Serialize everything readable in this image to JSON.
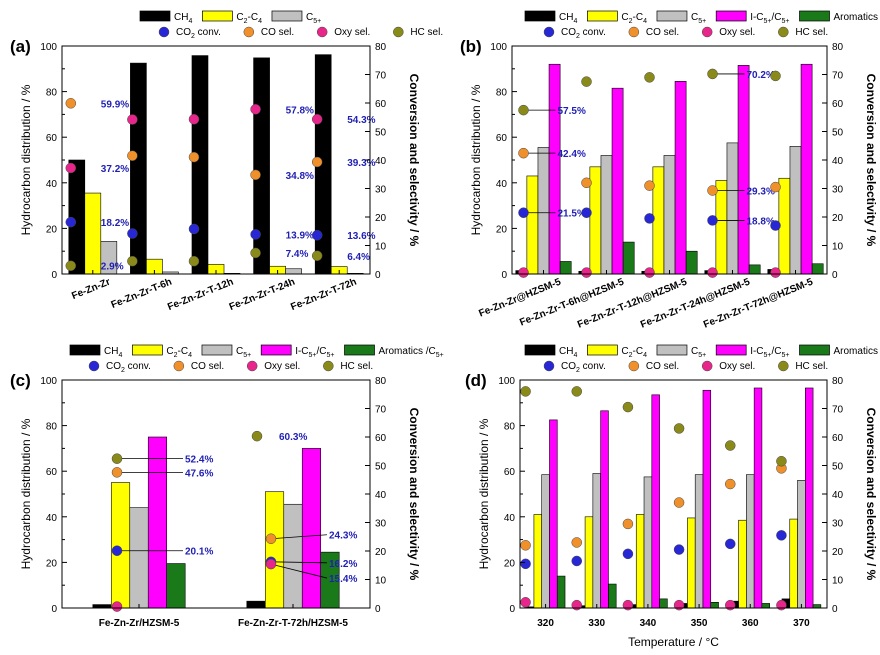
{
  "figure": {
    "title": "Hydrocarbon distribution and conversion/selectivity of Fe-Zn-Zr catalysts"
  },
  "colors": {
    "CH4": "#000000",
    "C2C4": "#ffff00",
    "C5p": "#c0c0c0",
    "iC5": "#ff00ff",
    "arom": "#1a7a1a",
    "co2": "#2727d6",
    "co": "#f0902a",
    "oxy": "#e8258a",
    "hc": "#8a8a1a",
    "label": "#1f1fb4"
  },
  "chart_data": [
    {
      "id": "a",
      "panel_label": "(a)",
      "type": "bar",
      "categories": [
        "Fe-Zn-Zr",
        "Fe-Zn-Zr-T-6h",
        "Fe-Zn-Zr-T-12h",
        "Fe-Zn-Zr-T-24h",
        "Fe-Zn-Zr-T-72h"
      ],
      "rotate_ticks": true,
      "xlabel": "",
      "ylabel_left": "Hydrocarbon distribution / %",
      "ylabel_right": "Conversion and selectivity / %",
      "ylim_left": [
        0,
        100
      ],
      "yticks_left": [
        0,
        20,
        40,
        60,
        80,
        100
      ],
      "ylim_right": [
        0,
        80
      ],
      "yticks_right": [
        0,
        10,
        20,
        30,
        40,
        50,
        60,
        70,
        80
      ],
      "legend": {
        "bars": [
          {
            "key": "CH4",
            "label": "CH",
            "sub": "4"
          },
          {
            "key": "C2C4",
            "label": "C",
            "sub": "2",
            "mid": "-C",
            "sub2": "4"
          },
          {
            "key": "C5p",
            "label": "C",
            "sub": "5+"
          }
        ],
        "points": [
          {
            "key": "co2",
            "label": "CO",
            "sub": "2",
            "rest": " conv."
          },
          {
            "key": "co",
            "label": "CO sel."
          },
          {
            "key": "oxy",
            "label": "Oxy sel."
          },
          {
            "key": "hc",
            "label": "HC sel."
          }
        ]
      },
      "series": [
        {
          "name": "CH4",
          "key": "CH4",
          "values": [
            50.0,
            92.5,
            95.8,
            94.8,
            96.2
          ]
        },
        {
          "name": "C2-C4",
          "key": "C2C4",
          "values": [
            35.5,
            6.5,
            4.2,
            3.4,
            3.2
          ]
        },
        {
          "name": "C5+",
          "key": "C5p",
          "values": [
            14.3,
            0.9,
            0.3,
            2.3,
            0.3
          ]
        }
      ],
      "points": [
        {
          "name": "CO2 conv.",
          "key": "co2",
          "values": [
            18.2,
            14.2,
            15.8,
            13.9,
            13.6
          ]
        },
        {
          "name": "CO sel.",
          "key": "co",
          "values": [
            59.9,
            41.5,
            41.0,
            34.8,
            39.3
          ]
        },
        {
          "name": "Oxy sel.",
          "key": "oxy",
          "values": [
            37.2,
            54.2,
            54.3,
            57.8,
            54.3
          ]
        },
        {
          "name": "HC sel.",
          "key": "hc",
          "values": [
            2.9,
            4.5,
            4.5,
            7.4,
            6.4
          ]
        }
      ],
      "annotations": [
        {
          "text": "59.9%",
          "cat": 0,
          "value": 59.9
        },
        {
          "text": "37.2%",
          "cat": 0,
          "value": 37.2
        },
        {
          "text": "18.2%",
          "cat": 0,
          "value": 18.2
        },
        {
          "text": "2.9%",
          "cat": 0,
          "value": 2.9
        },
        {
          "text": "57.8%",
          "cat": 3,
          "value": 57.8
        },
        {
          "text": "34.8%",
          "cat": 3,
          "value": 34.8
        },
        {
          "text": "13.9%",
          "cat": 3,
          "value": 13.9
        },
        {
          "text": "7.4%",
          "cat": 3,
          "value": 7.4
        },
        {
          "text": "54.3%",
          "cat": 4,
          "value": 54.3
        },
        {
          "text": "39.3%",
          "cat": 4,
          "value": 39.3
        },
        {
          "text": "13.6%",
          "cat": 4,
          "value": 13.6
        },
        {
          "text": "6.4%",
          "cat": 4,
          "value": 6.4
        }
      ]
    },
    {
      "id": "b",
      "panel_label": "(b)",
      "type": "bar",
      "categories": [
        "Fe-Zn-Zr@HZSM-5",
        "Fe-Zn-Zr-T-6h@HZSM-5",
        "Fe-Zn-Zr-T-12h@HZSM-5",
        "Fe-Zn-Zr-T-24h@HZSM-5",
        "Fe-Zn-Zr-T-72h@HZSM-5"
      ],
      "rotate_ticks": true,
      "xlabel": "",
      "ylabel_left": "Hydrocarbon distribution / %",
      "ylabel_right": "Conversion and selectivity / %",
      "ylim_left": [
        0,
        100
      ],
      "yticks_left": [
        0,
        20,
        40,
        60,
        80,
        100
      ],
      "ylim_right": [
        0,
        80
      ],
      "yticks_right": [
        0,
        10,
        20,
        30,
        40,
        50,
        60,
        70,
        80
      ],
      "legend": {
        "bars": [
          {
            "key": "CH4",
            "label": "CH",
            "sub": "4"
          },
          {
            "key": "C2C4",
            "label": "C",
            "sub": "2",
            "mid": "-C",
            "sub2": "4"
          },
          {
            "key": "C5p",
            "label": "C",
            "sub": "5+"
          },
          {
            "key": "iC5",
            "label": "I-C",
            "sub": "5+",
            "mid": "/C",
            "sub2": "5+"
          },
          {
            "key": "arom",
            "label": "Aromatics /C",
            "sub": "5+"
          }
        ],
        "points": [
          {
            "key": "co2",
            "label": "CO",
            "sub": "2",
            "rest": " conv."
          },
          {
            "key": "co",
            "label": "CO sel."
          },
          {
            "key": "oxy",
            "label": "Oxy sel."
          },
          {
            "key": "hc",
            "label": "HC sel."
          }
        ]
      },
      "series": [
        {
          "name": "CH4",
          "key": "CH4",
          "values": [
            1.5,
            1.2,
            1.2,
            1.5,
            2.0
          ]
        },
        {
          "name": "C2-C4",
          "key": "C2C4",
          "values": [
            43.0,
            47.0,
            47.0,
            41.0,
            42.0
          ]
        },
        {
          "name": "C5+",
          "key": "C5p",
          "values": [
            55.5,
            52.0,
            52.0,
            57.5,
            56.0
          ]
        },
        {
          "name": "I-C5+/C5+",
          "key": "iC5",
          "values": [
            92.0,
            81.5,
            84.5,
            91.5,
            92.0
          ]
        },
        {
          "name": "Aromatics/C5+",
          "key": "arom",
          "values": [
            5.5,
            14.0,
            10.0,
            4.0,
            4.5
          ]
        }
      ],
      "points": [
        {
          "name": "CO2 conv.",
          "key": "co2",
          "values": [
            21.5,
            21.5,
            19.5,
            18.8,
            17.0
          ]
        },
        {
          "name": "CO sel.",
          "key": "co",
          "values": [
            42.4,
            32.0,
            31.0,
            29.3,
            30.5
          ]
        },
        {
          "name": "Oxy sel.",
          "key": "oxy",
          "values": [
            0.5,
            0.5,
            0.5,
            0.5,
            0.5
          ]
        },
        {
          "name": "HC sel.",
          "key": "hc",
          "values": [
            57.5,
            67.5,
            69.0,
            70.2,
            69.5
          ]
        }
      ],
      "annotations": [
        {
          "text": "57.5%",
          "cat": 0,
          "value": 57.5
        },
        {
          "text": "42.4%",
          "cat": 0,
          "value": 42.4
        },
        {
          "text": "21.5%",
          "cat": 0,
          "value": 21.5
        },
        {
          "text": "70.2%",
          "cat": 3,
          "value": 70.2
        },
        {
          "text": "29.3%",
          "cat": 3,
          "value": 29.3
        },
        {
          "text": "18.8%",
          "cat": 3,
          "value": 18.8
        }
      ]
    },
    {
      "id": "c",
      "panel_label": "(c)",
      "type": "bar",
      "categories": [
        "Fe-Zn-Zr/HZSM-5",
        "Fe-Zn-Zr-T-72h/HZSM-5"
      ],
      "rotate_ticks": false,
      "xlabel": "",
      "ylabel_left": "Hydrocarbon distribution / %",
      "ylabel_right": "Conversion and selectivity / %",
      "ylim_left": [
        0,
        100
      ],
      "yticks_left": [
        0,
        20,
        40,
        60,
        80,
        100
      ],
      "ylim_right": [
        0,
        80
      ],
      "yticks_right": [
        0,
        10,
        20,
        30,
        40,
        50,
        60,
        70,
        80
      ],
      "legend": {
        "bars": [
          {
            "key": "CH4",
            "label": "CH",
            "sub": "4"
          },
          {
            "key": "C2C4",
            "label": "C",
            "sub": "2",
            "mid": "-C",
            "sub2": "4"
          },
          {
            "key": "C5p",
            "label": "C",
            "sub": "5+"
          },
          {
            "key": "iC5",
            "label": "I-C",
            "sub": "5+",
            "mid": "/C",
            "sub2": "5+"
          },
          {
            "key": "arom",
            "label": "Aromatics /C",
            "sub": "5+"
          }
        ],
        "points": [
          {
            "key": "co2",
            "label": "CO",
            "sub": "2",
            "rest": " conv."
          },
          {
            "key": "co",
            "label": "CO sel."
          },
          {
            "key": "oxy",
            "label": "Oxy sel."
          },
          {
            "key": "hc",
            "label": "HC sel."
          }
        ]
      },
      "series": [
        {
          "name": "CH4",
          "key": "CH4",
          "values": [
            1.5,
            3.0
          ]
        },
        {
          "name": "C2-C4",
          "key": "C2C4",
          "values": [
            55.0,
            51.0
          ]
        },
        {
          "name": "C5+",
          "key": "C5p",
          "values": [
            44.0,
            45.5
          ]
        },
        {
          "name": "I-C5+/C5+",
          "key": "iC5",
          "values": [
            75.0,
            70.0
          ]
        },
        {
          "name": "Aromatics/C5+",
          "key": "arom",
          "values": [
            19.5,
            24.5
          ]
        }
      ],
      "points": [
        {
          "name": "CO2 conv.",
          "key": "co2",
          "values": [
            20.1,
            16.2
          ]
        },
        {
          "name": "CO sel.",
          "key": "co",
          "values": [
            47.6,
            24.3
          ]
        },
        {
          "name": "Oxy sel.",
          "key": "oxy",
          "values": [
            0.5,
            15.4
          ]
        },
        {
          "name": "HC sel.",
          "key": "hc",
          "values": [
            52.4,
            60.3
          ]
        }
      ],
      "annotations": [
        {
          "text": "52.4%",
          "cat": 0,
          "value": 52.4
        },
        {
          "text": "47.6%",
          "cat": 0,
          "value": 47.6
        },
        {
          "text": "20.1%",
          "cat": 0,
          "value": 20.1
        },
        {
          "text": "60.3%",
          "cat": 1,
          "value": 60.3
        },
        {
          "text": "24.3%",
          "cat": 1,
          "value": 24.3
        },
        {
          "text": "16.2%",
          "cat": 1,
          "value": 16.2
        },
        {
          "text": "15.4%",
          "cat": 1,
          "value": 15.4
        }
      ]
    },
    {
      "id": "d",
      "panel_label": "(d)",
      "type": "bar",
      "categories": [
        "320",
        "330",
        "340",
        "350",
        "360",
        "370"
      ],
      "rotate_ticks": false,
      "xlabel": "Temperature / °C",
      "ylabel_left": "Hydrocarbon distribution / %",
      "ylabel_right": "Conversion and selectivity / %",
      "ylim_left": [
        0,
        100
      ],
      "yticks_left": [
        0,
        20,
        40,
        60,
        80,
        100
      ],
      "ylim_right": [
        0,
        80
      ],
      "yticks_right": [
        0,
        10,
        20,
        30,
        40,
        50,
        60,
        70,
        80
      ],
      "legend": {
        "bars": [
          {
            "key": "CH4",
            "label": "CH",
            "sub": "4"
          },
          {
            "key": "C2C4",
            "label": "C",
            "sub": "2",
            "mid": "-C",
            "sub2": "4"
          },
          {
            "key": "C5p",
            "label": "C",
            "sub": "5+"
          },
          {
            "key": "iC5",
            "label": "I-C",
            "sub": "5+",
            "mid": "/C",
            "sub2": "5+"
          },
          {
            "key": "arom",
            "label": "Aromatics /C",
            "sub": "5+"
          }
        ],
        "points": [
          {
            "key": "co2",
            "label": "CO",
            "sub": "2",
            "rest": " conv."
          },
          {
            "key": "co",
            "label": "CO sel."
          },
          {
            "key": "oxy",
            "label": "Oxy sel."
          },
          {
            "key": "hc",
            "label": "HC sel."
          }
        ]
      },
      "series": [
        {
          "name": "CH4",
          "key": "CH4",
          "values": [
            0.5,
            1.0,
            1.5,
            2.0,
            3.0,
            4.0
          ]
        },
        {
          "name": "C2-C4",
          "key": "C2C4",
          "values": [
            41.0,
            40.0,
            41.0,
            39.5,
            38.5,
            39.0
          ]
        },
        {
          "name": "C5+",
          "key": "C5p",
          "values": [
            58.5,
            59.0,
            57.5,
            58.5,
            58.5,
            56.0
          ]
        },
        {
          "name": "I-C5+/C5+",
          "key": "iC5",
          "values": [
            82.5,
            86.5,
            93.5,
            95.5,
            96.5,
            96.5
          ]
        },
        {
          "name": "Aromatics/C5+",
          "key": "arom",
          "values": [
            14.0,
            10.5,
            4.0,
            2.5,
            2.0,
            1.5
          ]
        }
      ],
      "points": [
        {
          "name": "CO2 conv.",
          "key": "co2",
          "values": [
            15.5,
            16.5,
            19.0,
            20.5,
            22.5,
            25.5
          ]
        },
        {
          "name": "CO sel.",
          "key": "co",
          "values": [
            22.0,
            23.0,
            29.5,
            37.0,
            43.5,
            49.0
          ]
        },
        {
          "name": "Oxy sel.",
          "key": "oxy",
          "values": [
            2.0,
            1.0,
            1.0,
            1.0,
            1.0,
            1.0
          ]
        },
        {
          "name": "HC sel.",
          "key": "hc",
          "values": [
            76.0,
            76.0,
            70.5,
            63.0,
            57.0,
            51.5
          ]
        }
      ],
      "annotations": []
    }
  ]
}
